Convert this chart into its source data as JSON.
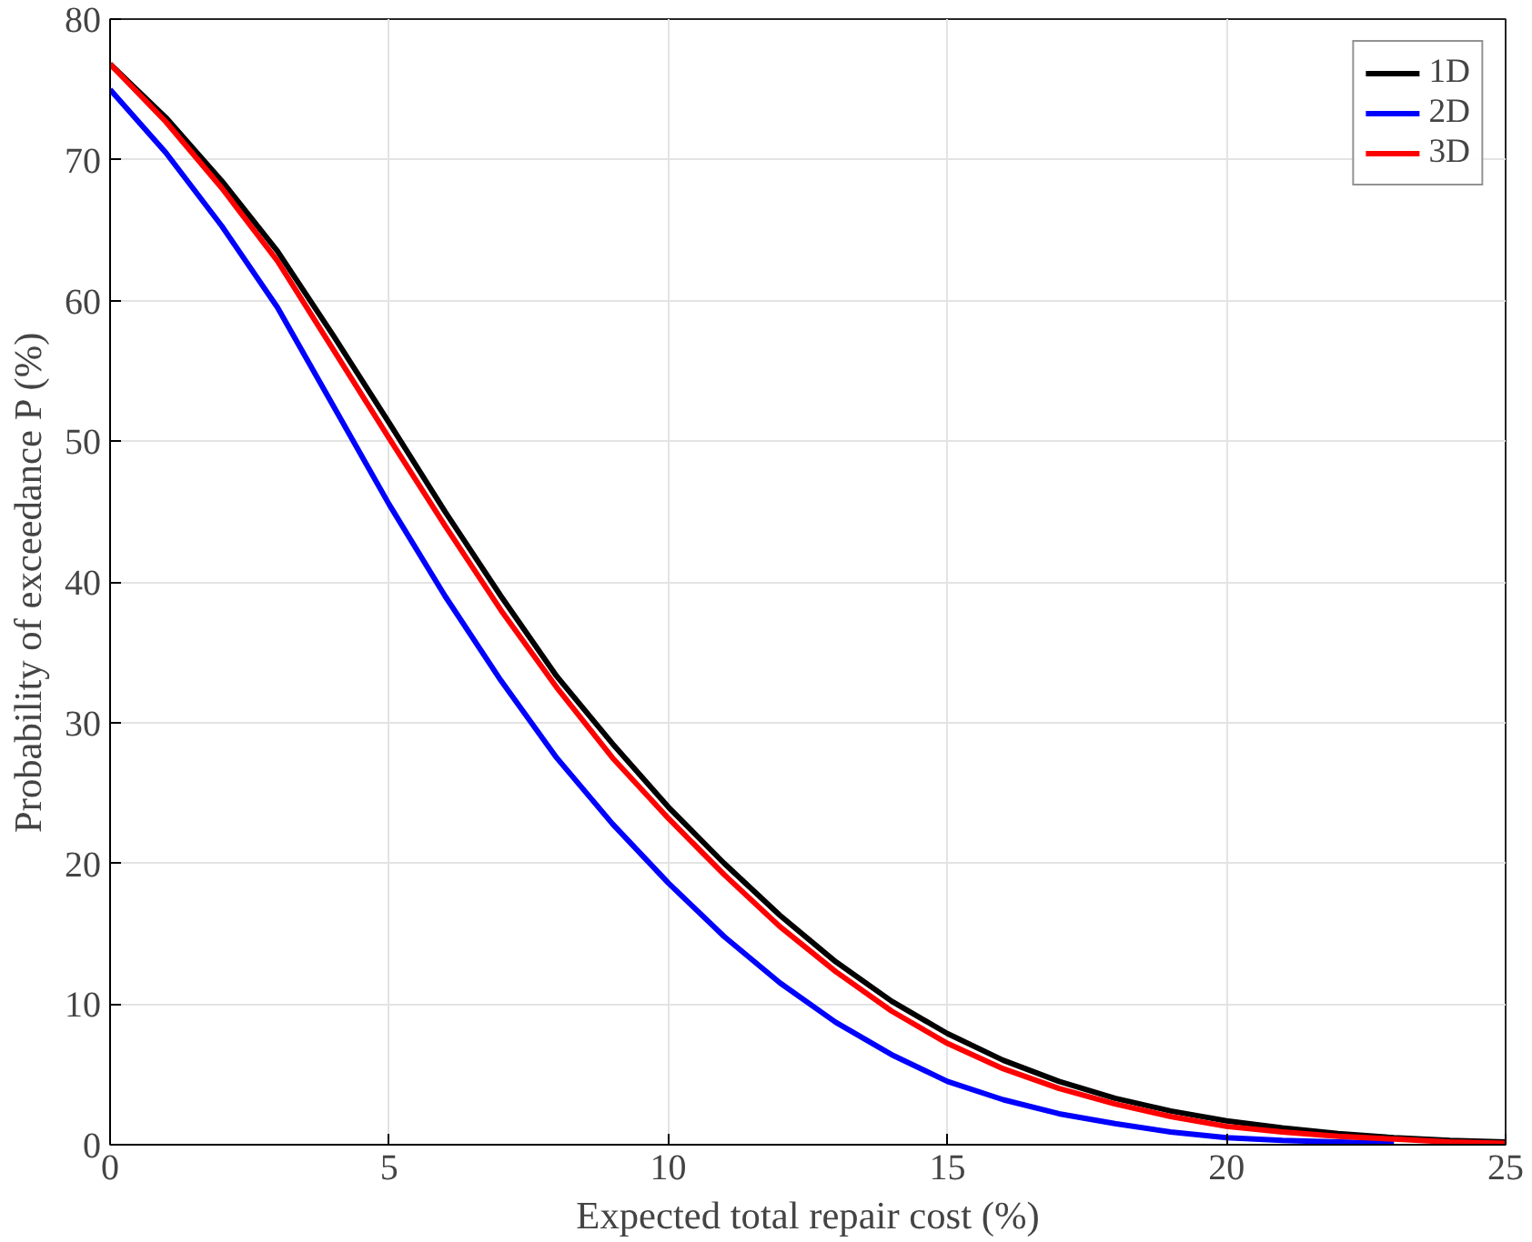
{
  "chart_data": {
    "type": "line",
    "xlabel": "Expected total repair cost (%)",
    "ylabel": "Probability of exceedance P (%)",
    "x": [
      0,
      1,
      2,
      3,
      4,
      5,
      6,
      7,
      8,
      9,
      10,
      11,
      12,
      13,
      14,
      15,
      16,
      17,
      18,
      19,
      20,
      21,
      22,
      23,
      24,
      25
    ],
    "series": [
      {
        "name": "1D",
        "color": "#000000",
        "values": [
          76.8,
          73,
          68.5,
          63.5,
          57.5,
          51.3,
          45,
          39,
          33.3,
          28.5,
          24,
          20,
          16.3,
          13,
          10.2,
          7.9,
          6,
          4.5,
          3.3,
          2.4,
          1.7,
          1.2,
          0.8,
          0.5,
          0.3,
          0.2
        ]
      },
      {
        "name": "2D",
        "color": "#0000ff",
        "values": [
          75,
          70.5,
          65.3,
          59.5,
          52.5,
          45.5,
          39,
          33,
          27.5,
          22.8,
          18.6,
          14.8,
          11.5,
          8.7,
          6.4,
          4.5,
          3.2,
          2.2,
          1.5,
          0.9,
          0.5,
          0.3,
          0.2,
          0.1,
          null,
          null
        ]
      },
      {
        "name": "3D",
        "color": "#ff0000",
        "values": [
          76.8,
          72.7,
          68,
          62.8,
          56.5,
          50.2,
          44,
          38,
          32.5,
          27.5,
          23.2,
          19.2,
          15.5,
          12.3,
          9.5,
          7.2,
          5.4,
          4,
          2.9,
          2,
          1.3,
          0.9,
          0.6,
          0.4,
          0.2,
          0.1
        ]
      }
    ],
    "xlim": [
      0,
      25
    ],
    "ylim": [
      0,
      80
    ],
    "xticks": [
      0,
      5,
      10,
      15,
      20,
      25
    ],
    "yticks": [
      0,
      10,
      20,
      30,
      40,
      50,
      60,
      70,
      80
    ],
    "grid": true,
    "legend": "top right",
    "line_style": "solid",
    "marker": "none"
  }
}
